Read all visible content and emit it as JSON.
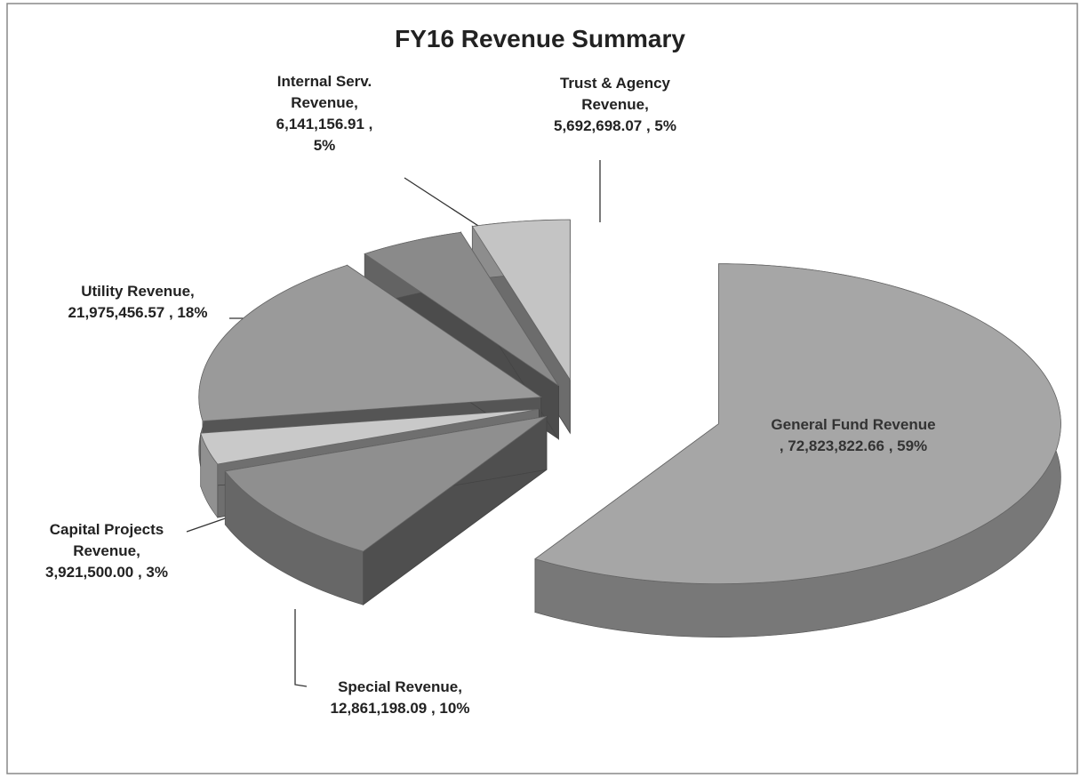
{
  "chart_data": {
    "type": "pie",
    "title": "FY16 Revenue Summary",
    "categories": [
      "General Fund Revenue",
      "Special Revenue,",
      "Capital Projects Revenue,",
      "Utility Revenue,",
      "Internal Serv. Revenue,",
      "Trust & Agency Revenue,"
    ],
    "values": [
      72823822.66,
      12861198.09,
      3921500.0,
      21975456.57,
      6141156.91,
      5692698.07
    ],
    "value_labels": [
      ", 72,823,822.66 , 59%",
      "12,861,198.09 , 10%",
      "3,921,500.00 , 3%",
      "21,975,456.57 , 18%",
      "6,141,156.91 , 5%",
      "5,692,698.07 , 5%"
    ],
    "colors": [
      "#a6a6a6",
      "#8f8f8f",
      "#c9c9c9",
      "#9a9a9a",
      "#8a8a8a",
      "#c4c4c4"
    ]
  }
}
